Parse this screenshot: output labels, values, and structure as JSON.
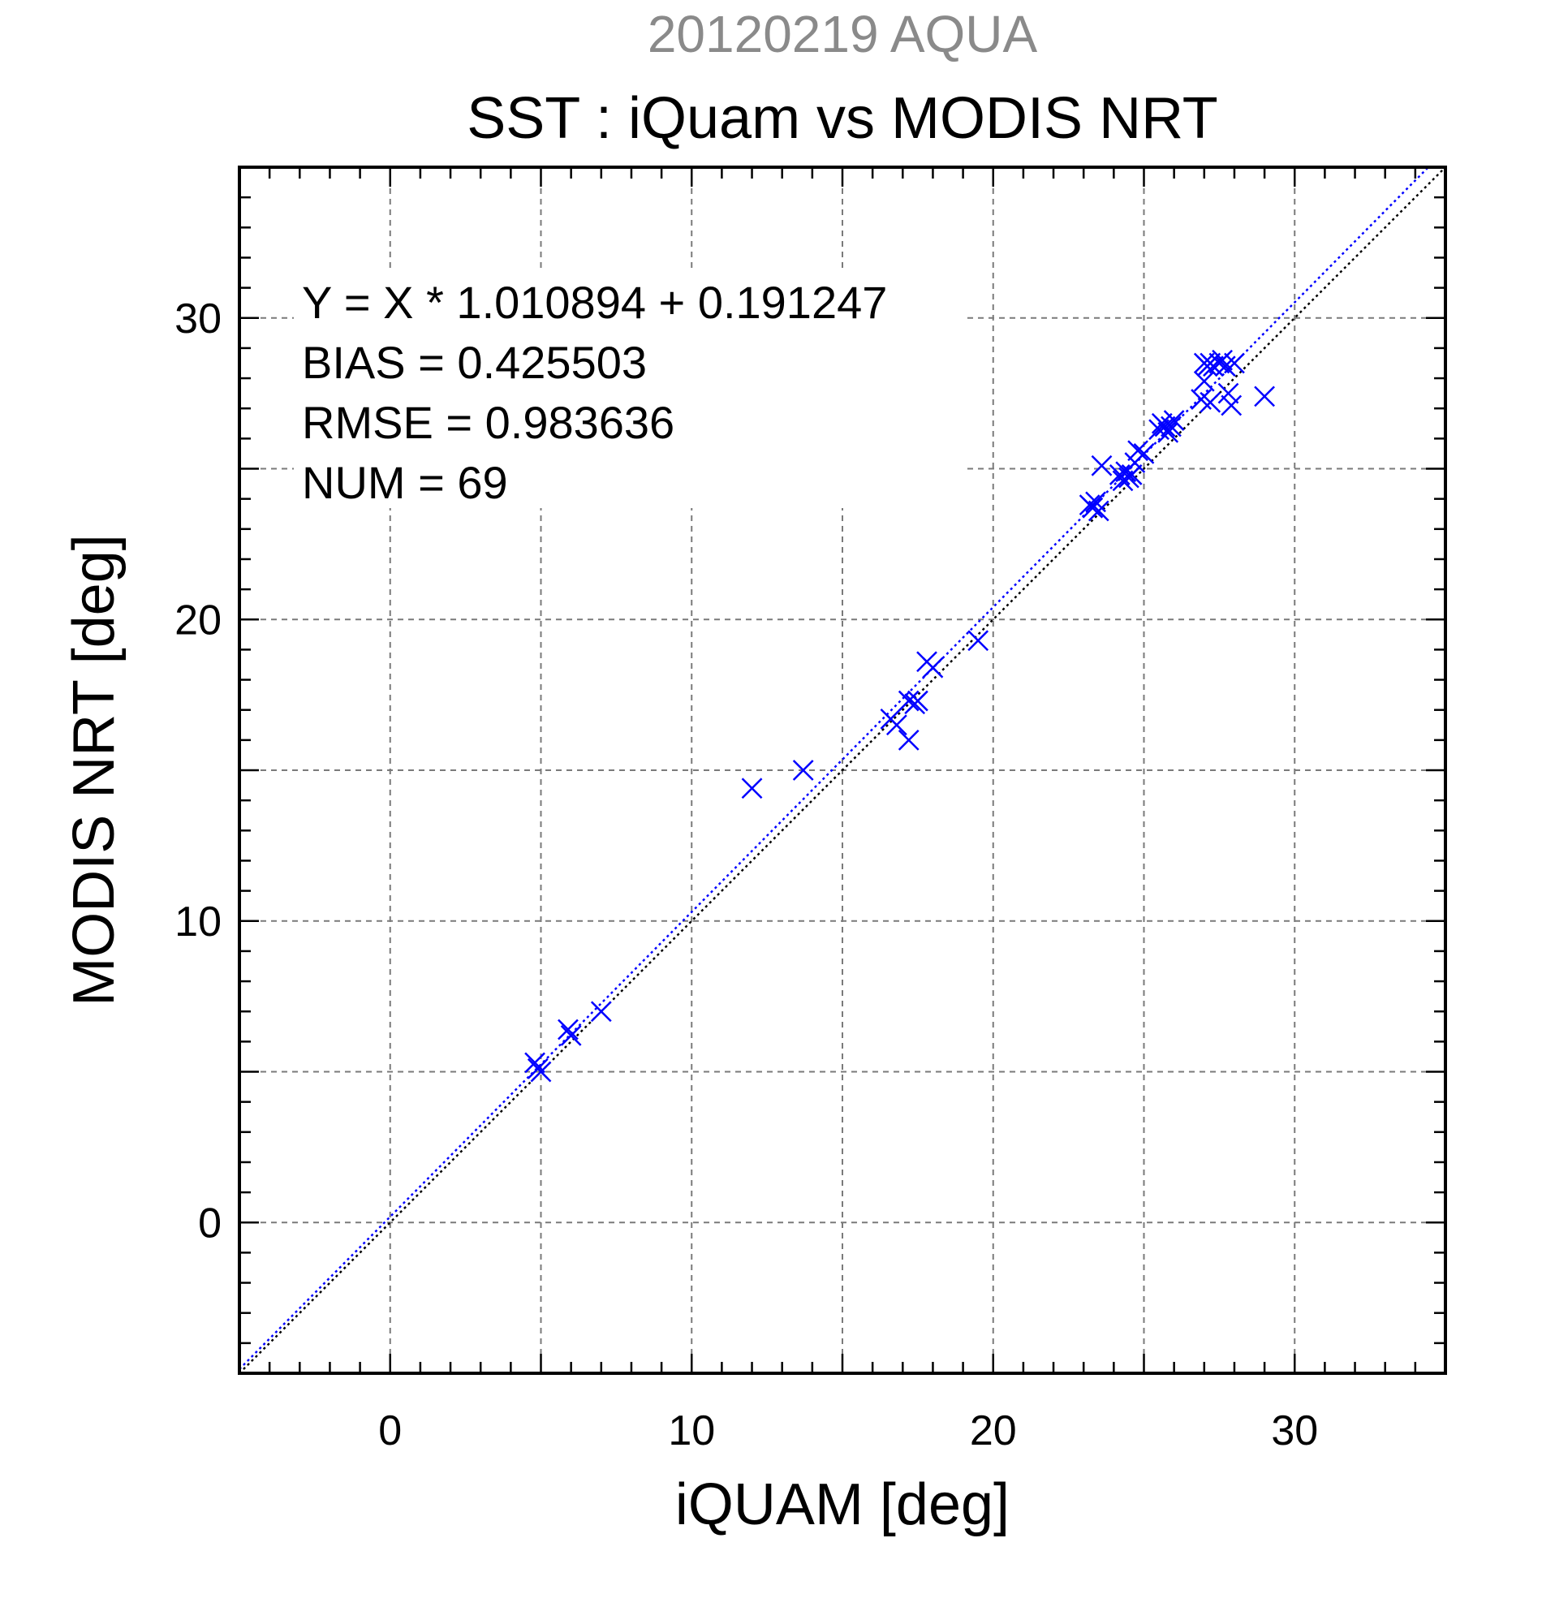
{
  "chart_data": {
    "type": "scatter",
    "title_top": "20120219 AQUA",
    "title": "SST : iQuam vs MODIS NRT",
    "xlabel": "iQUAM [deg]",
    "ylabel": "MODIS NRT [deg]",
    "xlim": [
      -5,
      35
    ],
    "ylim": [
      -5,
      35
    ],
    "xticks": [
      0,
      10,
      20,
      30
    ],
    "yticks": [
      0,
      10,
      20,
      30
    ],
    "grid": true,
    "stats": [
      "Y = X * 1.010894 + 0.191247",
      "BIAS = 0.425503",
      "RMSE = 0.983636",
      "NUM = 69"
    ],
    "regression": {
      "slope": 1.010894,
      "intercept": 0.191247
    },
    "series": [
      {
        "marker": "x",
        "color": "#0000ff",
        "points": [
          [
            4.8,
            5.3
          ],
          [
            4.9,
            5.1
          ],
          [
            5.0,
            5.0
          ],
          [
            5.9,
            6.4
          ],
          [
            6.0,
            6.2
          ],
          [
            7.0,
            7.0
          ],
          [
            12.0,
            14.4
          ],
          [
            13.7,
            15.0
          ],
          [
            16.6,
            16.7
          ],
          [
            16.8,
            16.5
          ],
          [
            17.2,
            16.0
          ],
          [
            17.2,
            17.3
          ],
          [
            17.4,
            17.2
          ],
          [
            17.5,
            17.3
          ],
          [
            17.8,
            18.6
          ],
          [
            18.0,
            18.4
          ],
          [
            19.5,
            19.3
          ],
          [
            23.2,
            23.8
          ],
          [
            23.3,
            23.7
          ],
          [
            23.4,
            23.9
          ],
          [
            23.5,
            23.6
          ],
          [
            23.6,
            25.1
          ],
          [
            24.2,
            24.8
          ],
          [
            24.3,
            24.6
          ],
          [
            24.4,
            24.9
          ],
          [
            24.5,
            24.7
          ],
          [
            24.6,
            24.8
          ],
          [
            24.7,
            25.2
          ],
          [
            24.8,
            25.6
          ],
          [
            25.0,
            25.5
          ],
          [
            25.5,
            26.3
          ],
          [
            25.6,
            26.5
          ],
          [
            25.7,
            26.4
          ],
          [
            25.8,
            26.2
          ],
          [
            25.9,
            26.4
          ],
          [
            26.0,
            26.6
          ],
          [
            26.9,
            27.3
          ],
          [
            27.0,
            27.9
          ],
          [
            27.0,
            28.5
          ],
          [
            27.1,
            28.4
          ],
          [
            27.2,
            28.5
          ],
          [
            27.2,
            27.2
          ],
          [
            27.3,
            28.4
          ],
          [
            27.5,
            28.5
          ],
          [
            27.6,
            28.6
          ],
          [
            27.7,
            28.4
          ],
          [
            27.8,
            27.5
          ],
          [
            27.9,
            27.1
          ],
          [
            29.0,
            27.4
          ],
          [
            28.0,
            28.5
          ]
        ]
      }
    ],
    "lines": [
      {
        "kind": "regression",
        "color": "#0000ff",
        "style": "dotted"
      },
      {
        "kind": "identity",
        "color": "#000000",
        "style": "dotted"
      }
    ]
  }
}
